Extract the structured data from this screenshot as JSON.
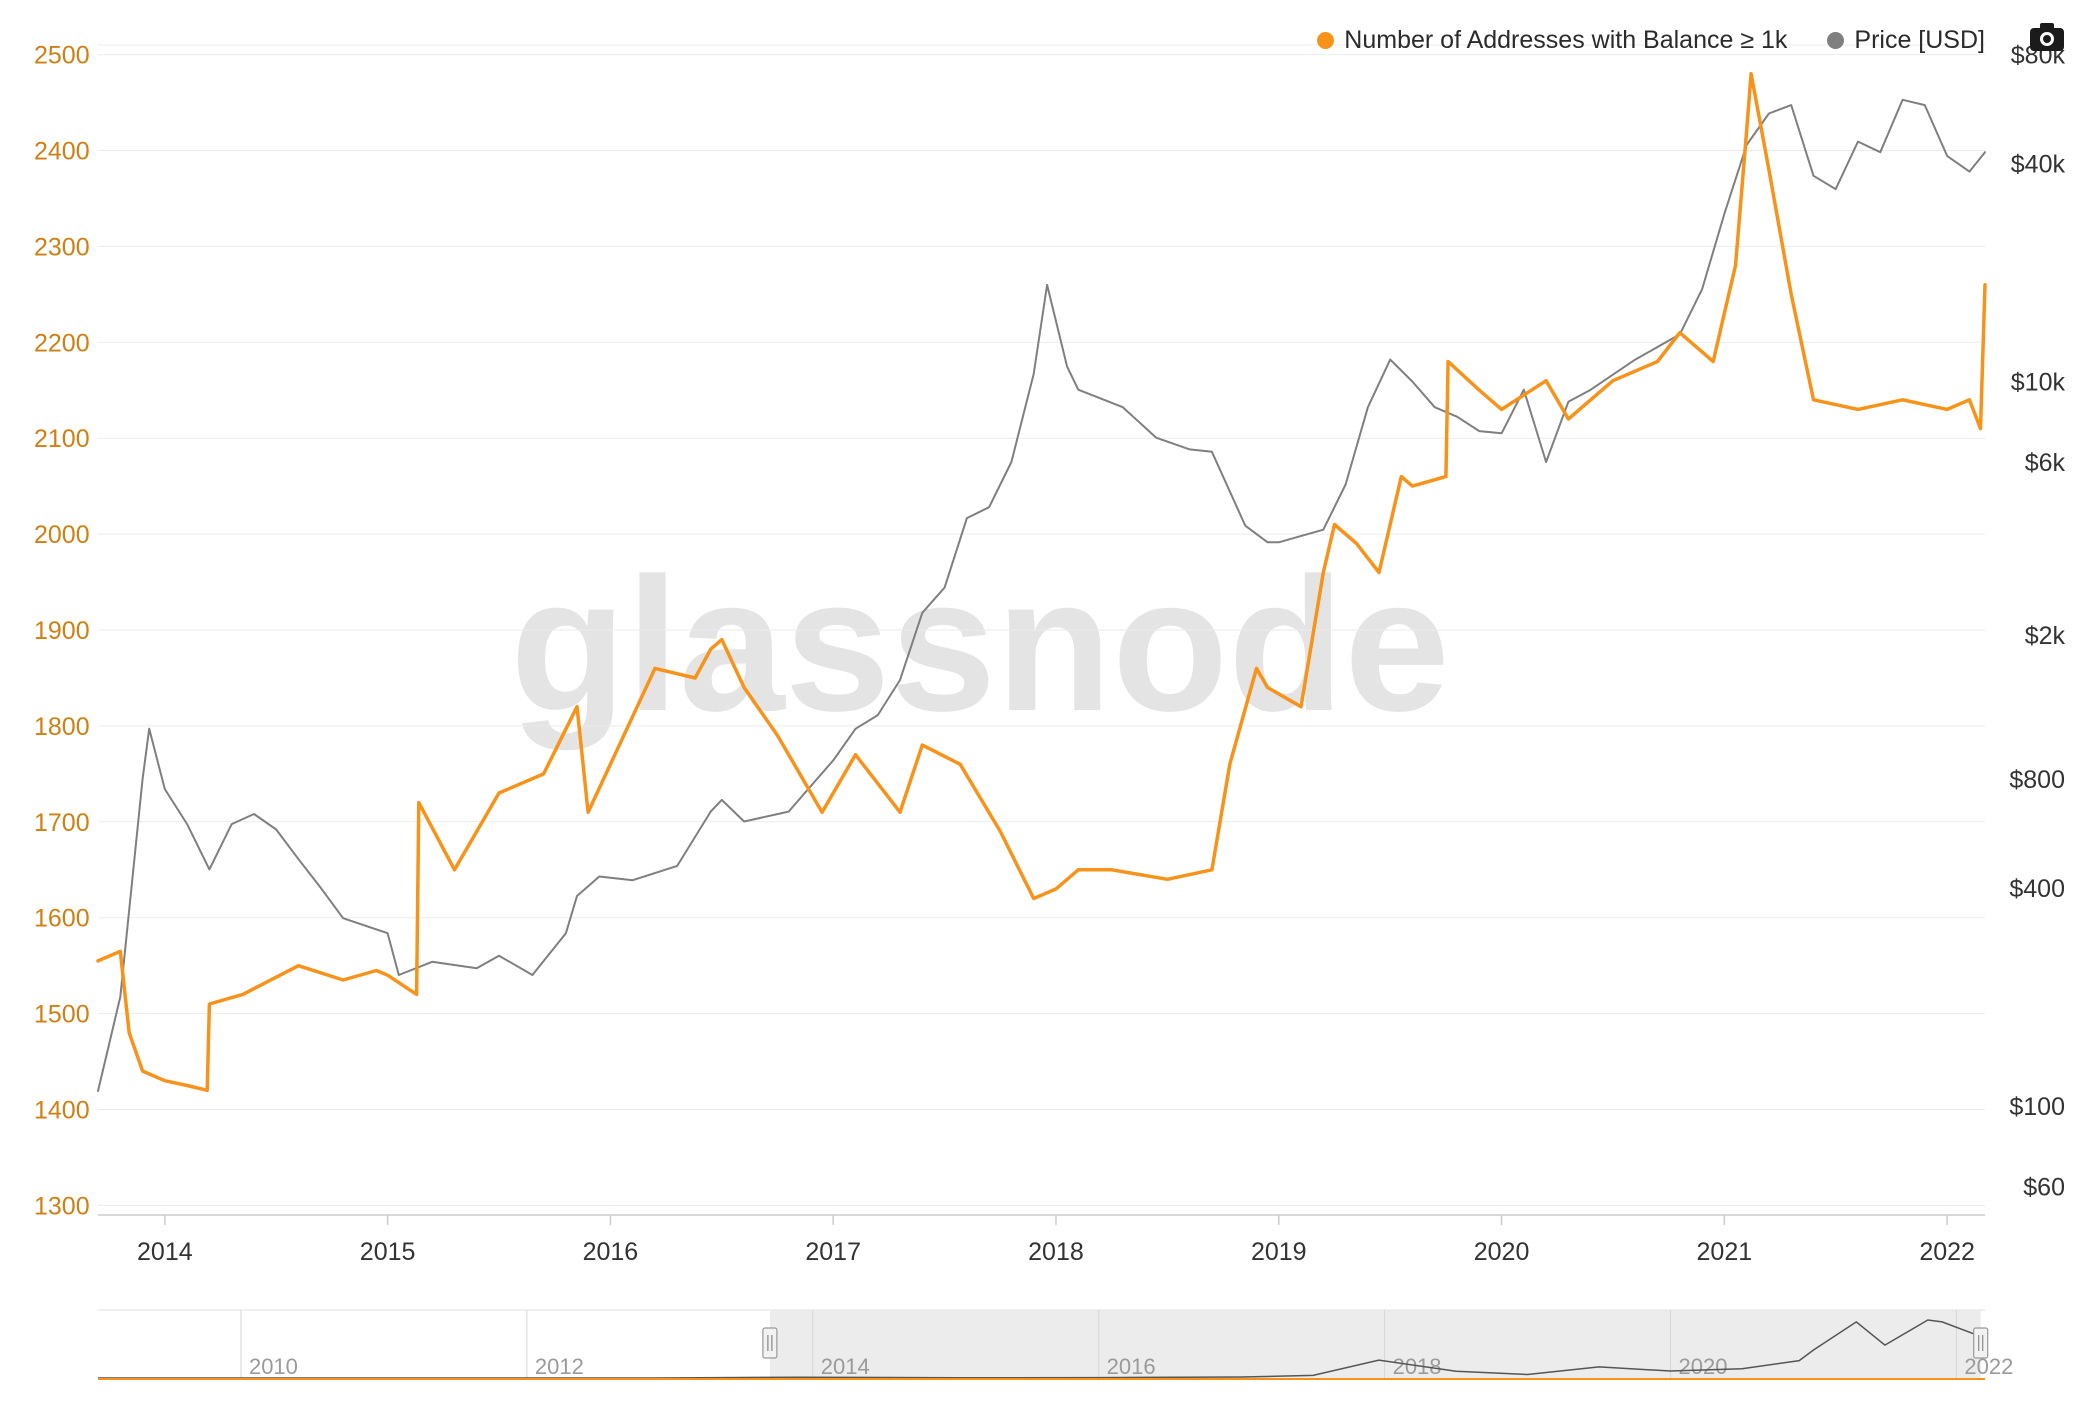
{
  "legend": {
    "series1_label": "Number of Addresses with Balance ≥ 1k",
    "series2_label": "Price [USD]",
    "series1_color": "#f7931a",
    "series2_color": "#7f7f7f"
  },
  "toolbar": {
    "camera_icon": "camera-icon"
  },
  "watermark": "glassnode",
  "chart_data": {
    "type": "line",
    "left_axis": {
      "ticks": [
        1300,
        1400,
        1500,
        1600,
        1700,
        1800,
        1900,
        2000,
        2100,
        2200,
        2300,
        2400,
        2500
      ],
      "range": [
        1290,
        2510
      ],
      "color": "#d07f12"
    },
    "right_axis": {
      "scale": "log",
      "range": [
        50,
        85000
      ],
      "ticks": [
        {
          "value": 60,
          "label": "$60"
        },
        {
          "value": 100,
          "label": "$100"
        },
        {
          "value": 400,
          "label": "$400"
        },
        {
          "value": 800,
          "label": "$800"
        },
        {
          "value": 2000,
          "label": "$2k"
        },
        {
          "value": 6000,
          "label": "$6k"
        },
        {
          "value": 10000,
          "label": "$10k"
        },
        {
          "value": 40000,
          "label": "$40k"
        },
        {
          "value": 80000,
          "label": "$80k"
        }
      ]
    },
    "x_axis": {
      "ticks": [
        "2014",
        "2015",
        "2016",
        "2017",
        "2018",
        "2019",
        "2020",
        "2021",
        "2022"
      ],
      "range": [
        2013.7,
        2022.17
      ]
    },
    "series": [
      {
        "name": "Number of Addresses with Balance ≥ 1k",
        "axis": "left",
        "color": "#f7931a",
        "x": [
          2013.7,
          2013.8,
          2013.84,
          2013.9,
          2014.0,
          2014.1,
          2014.19,
          2014.2,
          2014.35,
          2014.6,
          2014.8,
          2014.95,
          2015.0,
          2015.13,
          2015.14,
          2015.3,
          2015.5,
          2015.7,
          2015.85,
          2015.9,
          2016.0,
          2016.2,
          2016.38,
          2016.45,
          2016.5,
          2016.6,
          2016.75,
          2016.95,
          2017.1,
          2017.3,
          2017.4,
          2017.57,
          2017.75,
          2017.9,
          2018.0,
          2018.1,
          2018.25,
          2018.5,
          2018.7,
          2018.78,
          2018.9,
          2018.95,
          2019.1,
          2019.2,
          2019.25,
          2019.35,
          2019.45,
          2019.55,
          2019.6,
          2019.75,
          2019.76,
          2019.9,
          2020.0,
          2020.2,
          2020.3,
          2020.5,
          2020.7,
          2020.8,
          2020.95,
          2021.0,
          2021.05,
          2021.1,
          2021.12,
          2021.2,
          2021.3,
          2021.4,
          2021.6,
          2021.8,
          2022.0,
          2022.1,
          2022.15,
          2022.17
        ],
        "values": [
          1555,
          1565,
          1480,
          1440,
          1430,
          1425,
          1420,
          1510,
          1520,
          1550,
          1535,
          1545,
          1540,
          1520,
          1720,
          1650,
          1730,
          1750,
          1820,
          1710,
          1760,
          1860,
          1850,
          1880,
          1890,
          1840,
          1790,
          1710,
          1770,
          1710,
          1780,
          1760,
          1690,
          1620,
          1630,
          1650,
          1650,
          1640,
          1650,
          1760,
          1860,
          1840,
          1820,
          1960,
          2010,
          1990,
          1960,
          2060,
          2050,
          2060,
          2180,
          2150,
          2130,
          2160,
          2120,
          2160,
          2180,
          2210,
          2180,
          2230,
          2280,
          2420,
          2480,
          2380,
          2250,
          2140,
          2130,
          2140,
          2130,
          2140,
          2110,
          2260
        ]
      },
      {
        "name": "Price [USD]",
        "axis": "right",
        "color": "#7f7f7f",
        "x": [
          2013.7,
          2013.8,
          2013.9,
          2013.93,
          2014.0,
          2014.1,
          2014.2,
          2014.3,
          2014.4,
          2014.5,
          2014.6,
          2014.7,
          2014.8,
          2015.0,
          2015.05,
          2015.2,
          2015.4,
          2015.5,
          2015.65,
          2015.8,
          2015.85,
          2015.95,
          2016.1,
          2016.3,
          2016.45,
          2016.5,
          2016.6,
          2016.8,
          2017.0,
          2017.1,
          2017.2,
          2017.3,
          2017.4,
          2017.5,
          2017.6,
          2017.7,
          2017.8,
          2017.9,
          2017.96,
          2018.05,
          2018.1,
          2018.3,
          2018.45,
          2018.6,
          2018.7,
          2018.85,
          2018.95,
          2019.0,
          2019.2,
          2019.3,
          2019.4,
          2019.5,
          2019.6,
          2019.7,
          2019.8,
          2019.9,
          2020.0,
          2020.1,
          2020.2,
          2020.3,
          2020.4,
          2020.6,
          2020.8,
          2020.9,
          2021.0,
          2021.1,
          2021.2,
          2021.3,
          2021.4,
          2021.5,
          2021.6,
          2021.7,
          2021.8,
          2021.9,
          2022.0,
          2022.1,
          2022.17
        ],
        "values": [
          110,
          200,
          800,
          1100,
          750,
          600,
          450,
          600,
          640,
          580,
          480,
          400,
          330,
          300,
          230,
          250,
          240,
          260,
          230,
          300,
          380,
          430,
          420,
          460,
          650,
          700,
          610,
          650,
          900,
          1100,
          1200,
          1500,
          2300,
          2700,
          4200,
          4500,
          6000,
          10500,
          18500,
          11000,
          9500,
          8500,
          7000,
          6500,
          6400,
          4000,
          3600,
          3600,
          3900,
          5200,
          8500,
          11500,
          10000,
          8500,
          8000,
          7300,
          7200,
          9500,
          6000,
          8800,
          9500,
          11500,
          13500,
          18000,
          29000,
          45000,
          55000,
          58000,
          37000,
          34000,
          46000,
          43000,
          60000,
          58000,
          42000,
          38000,
          43000
        ]
      }
    ]
  },
  "navigator": {
    "ticks": [
      "2010",
      "2012",
      "2014",
      "2016",
      "2018",
      "2020",
      "2022"
    ],
    "range": [
      2009.0,
      2022.2
    ],
    "window": [
      2013.7,
      2022.17
    ],
    "price_x": [
      2009.0,
      2012.9,
      2013.9,
      2015.0,
      2016.0,
      2017.0,
      2017.5,
      2017.96,
      2018.5,
      2019.0,
      2019.5,
      2020.0,
      2020.5,
      2020.9,
      2021.0,
      2021.3,
      2021.5,
      2021.8,
      2021.9,
      2022.17
    ],
    "price_values": [
      0,
      0,
      800,
      250,
      420,
      1000,
      2700,
      18500,
      7000,
      3600,
      11500,
      7200,
      9500,
      18000,
      29000,
      58000,
      34000,
      60000,
      58000,
      43000
    ]
  }
}
